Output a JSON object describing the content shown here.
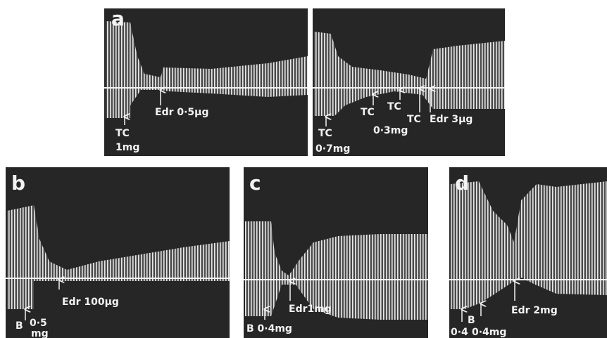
{
  "panels": [
    {
      "label": "a",
      "annotations": [
        "TC",
        "1mg",
        "Edr 0·5μg"
      ]
    },
    {
      "label": "",
      "annotations": [
        "TC",
        "0·7mg",
        "TC",
        "0·3mg",
        "TC",
        "TC",
        "Edr 3μg"
      ]
    },
    {
      "label": "b",
      "annotations": [
        "B",
        "0·5",
        "mg",
        "Edr 100μg"
      ]
    },
    {
      "label": "c",
      "annotations": [
        "B 0·4mg",
        "Edr1mg"
      ]
    },
    {
      "label": "d",
      "annotations": [
        "B",
        "0·4",
        "0·4mg",
        "Edr 2mg"
      ]
    }
  ]
}
